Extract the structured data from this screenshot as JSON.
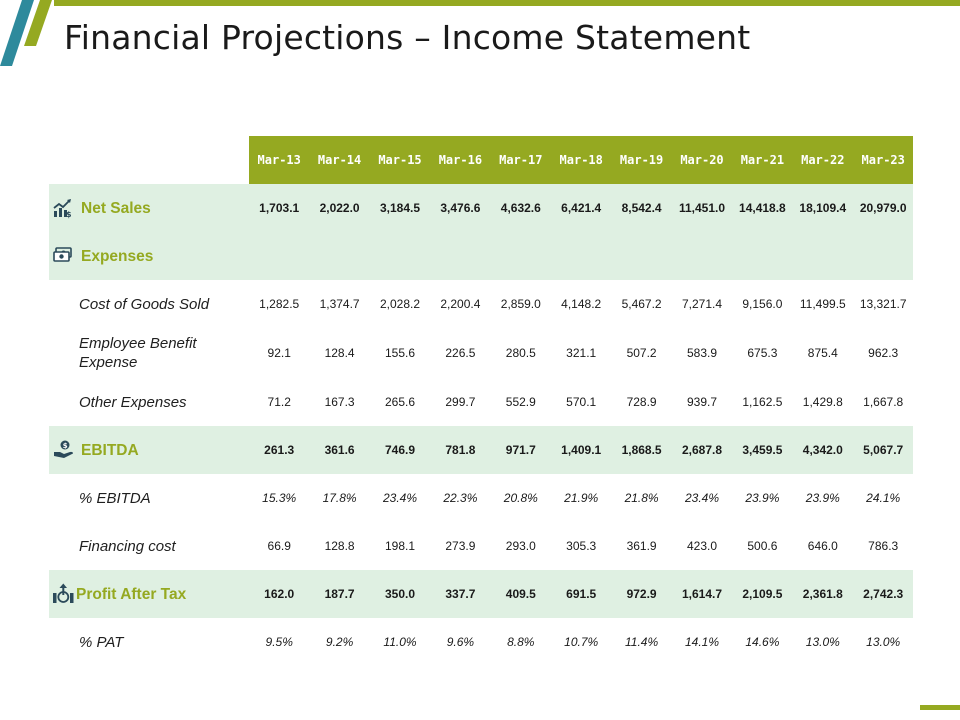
{
  "title": "Financial Projections – Income Statement",
  "colors": {
    "accent": "#95a921",
    "teal": "#2e8a9c",
    "row_shade": "#dff0e2"
  },
  "columns": [
    "Mar-13",
    "Mar-14",
    "Mar-15",
    "Mar-16",
    "Mar-17",
    "Mar-18",
    "Mar-19",
    "Mar-20",
    "Mar-21",
    "Mar-22",
    "Mar-23"
  ],
  "rows": {
    "net_sales": {
      "label": "Net Sales",
      "icon": "sales-growth-icon",
      "values": [
        "1,703.1",
        "2,022.0",
        "3,184.5",
        "3,476.6",
        "4,632.6",
        "6,421.4",
        "8,542.4",
        "11,451.0",
        "14,418.8",
        "18,109.4",
        "20,979.0"
      ]
    },
    "expenses": {
      "label": "Expenses",
      "icon": "money-icon"
    },
    "cogs": {
      "label": "Cost of Goods Sold",
      "values": [
        "1,282.5",
        "1,374.7",
        "2,028.2",
        "2,200.4",
        "2,859.0",
        "4,148.2",
        "5,467.2",
        "7,271.4",
        "9,156.0",
        "11,499.5",
        "13,321.7"
      ]
    },
    "employee": {
      "label": "Employee Benefit Expense",
      "values": [
        "92.1",
        "128.4",
        "155.6",
        "226.5",
        "280.5",
        "321.1",
        "507.2",
        "583.9",
        "675.3",
        "875.4",
        "962.3"
      ]
    },
    "other": {
      "label": "Other Expenses",
      "values": [
        "71.2",
        "167.3",
        "265.6",
        "299.7",
        "552.9",
        "570.1",
        "728.9",
        "939.7",
        "1,162.5",
        "1,429.8",
        "1,667.8"
      ]
    },
    "ebitda": {
      "label": "EBITDA",
      "icon": "hand-coin-icon",
      "values": [
        "261.3",
        "361.6",
        "746.9",
        "781.8",
        "971.7",
        "1,409.1",
        "1,868.5",
        "2,687.8",
        "3,459.5",
        "4,342.0",
        "5,067.7"
      ]
    },
    "pct_ebitda": {
      "label": "% EBITDA",
      "values": [
        "15.3%",
        "17.8%",
        "23.4%",
        "22.3%",
        "20.8%",
        "21.9%",
        "21.8%",
        "23.4%",
        "23.9%",
        "23.9%",
        "24.1%"
      ]
    },
    "financing": {
      "label": "Financing cost",
      "values": [
        "66.9",
        "128.8",
        "198.1",
        "273.9",
        "293.0",
        "305.3",
        "361.9",
        "423.0",
        "500.6",
        "646.0",
        "786.3"
      ]
    },
    "pat": {
      "label": "Profit After Tax",
      "icon": "bar-arrow-icon",
      "values": [
        "162.0",
        "187.7",
        "350.0",
        "337.7",
        "409.5",
        "691.5",
        "972.9",
        "1,614.7",
        "2,109.5",
        "2,361.8",
        "2,742.3"
      ]
    },
    "pct_pat": {
      "label": "% PAT",
      "values": [
        "9.5%",
        "9.2%",
        "11.0%",
        "9.6%",
        "8.8%",
        "10.7%",
        "11.4%",
        "14.1%",
        "14.6%",
        "13.0%",
        "13.0%"
      ]
    }
  }
}
